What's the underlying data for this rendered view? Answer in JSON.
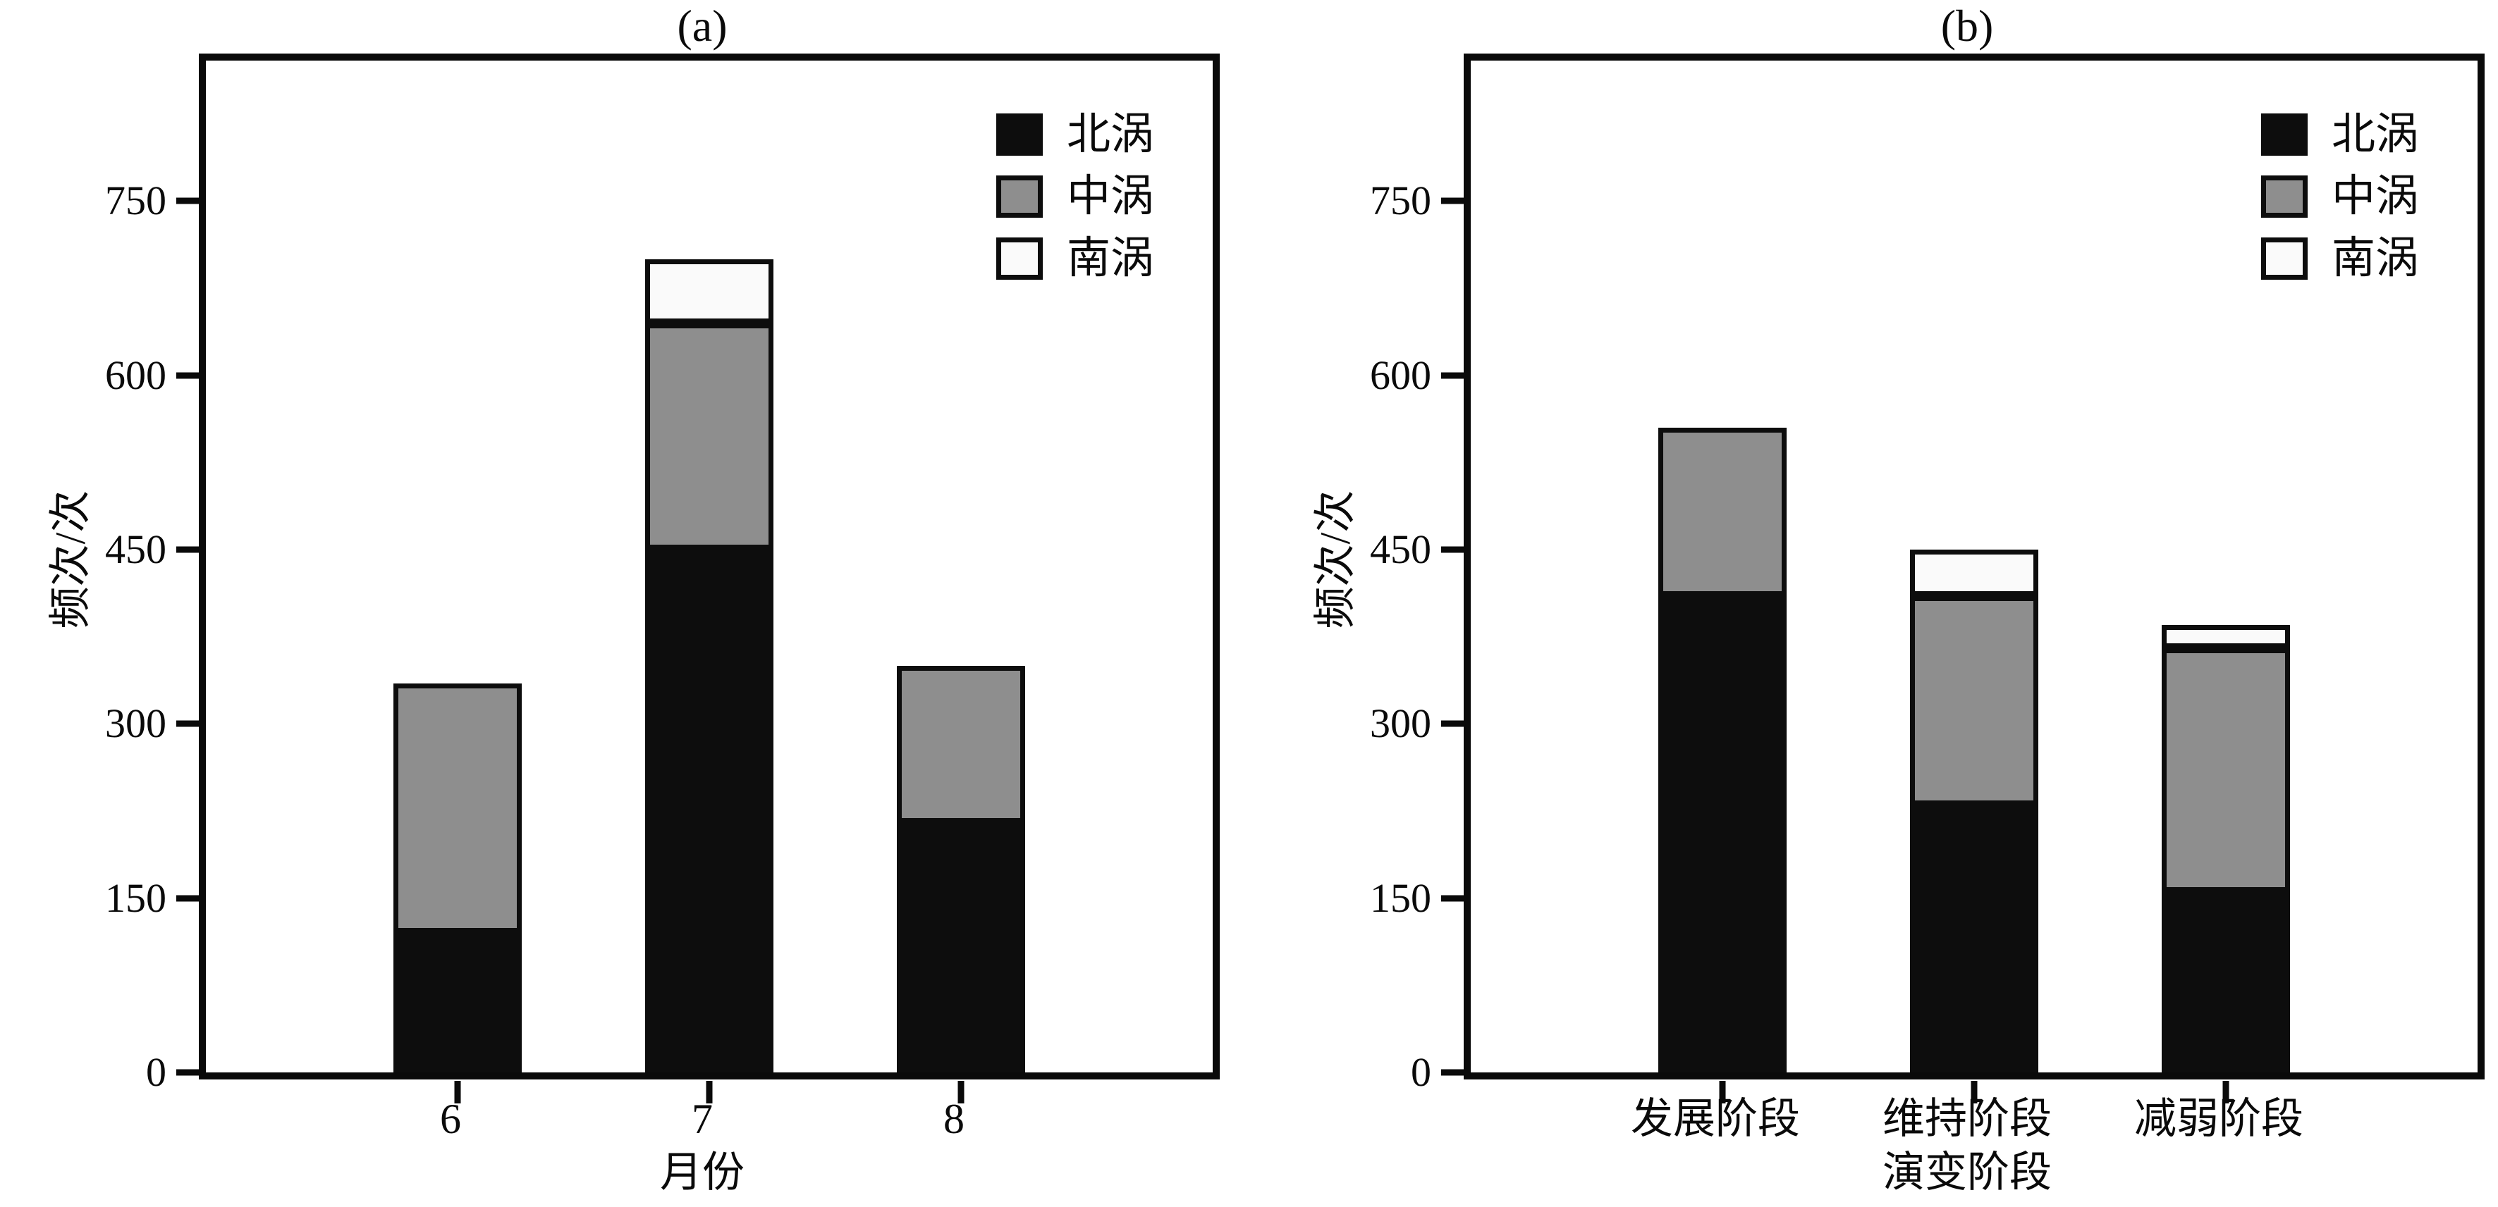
{
  "figure": {
    "background": "#ffffff",
    "frame_color": "#0a0a0a",
    "series_colors": {
      "north": "#0d0d0d",
      "middle": "#8e8e8e",
      "south": "#fafafa"
    }
  },
  "legend": {
    "items": [
      {
        "label": "北涡",
        "color": "#0d0d0d"
      },
      {
        "label": "中涡",
        "color": "#8e8e8e"
      },
      {
        "label": "南涡",
        "color": "#fafafa"
      }
    ]
  },
  "chart_data": [
    {
      "type": "bar",
      "stacked": true,
      "title": "(a)",
      "categories": [
        "6",
        "7",
        "8"
      ],
      "series": [
        {
          "name": "北涡",
          "color": "#0d0d0d",
          "values": [
            120,
            450,
            215
          ]
        },
        {
          "name": "中涡",
          "color": "#8e8e8e",
          "values": [
            215,
            195,
            135
          ]
        },
        {
          "name": "南涡",
          "color": "#fafafa",
          "values": [
            0,
            55,
            0
          ]
        }
      ],
      "stack_totals": [
        335,
        700,
        350
      ],
      "xlabel": "月份",
      "ylabel": "频次/次",
      "yticks": [
        0,
        150,
        300,
        450,
        600,
        750
      ],
      "ylim": [
        0,
        871
      ],
      "grid": false,
      "legend_position": "upper right"
    },
    {
      "type": "bar",
      "stacked": true,
      "title": "(b)",
      "categories": [
        "发展阶段",
        "维持阶段",
        "减弱阶段"
      ],
      "series": [
        {
          "name": "北涡",
          "color": "#0d0d0d",
          "values": [
            410,
            230,
            155
          ]
        },
        {
          "name": "中涡",
          "color": "#8e8e8e",
          "values": [
            145,
            180,
            210
          ]
        },
        {
          "name": "南涡",
          "color": "#fafafa",
          "values": [
            0,
            40,
            20
          ]
        }
      ],
      "stack_totals": [
        555,
        450,
        385
      ],
      "xlabel": "演变阶段",
      "ylabel": "频次/次",
      "yticks": [
        0,
        150,
        300,
        450,
        600,
        750
      ],
      "ylim": [
        0,
        871
      ],
      "grid": false,
      "legend_position": "upper right"
    }
  ]
}
